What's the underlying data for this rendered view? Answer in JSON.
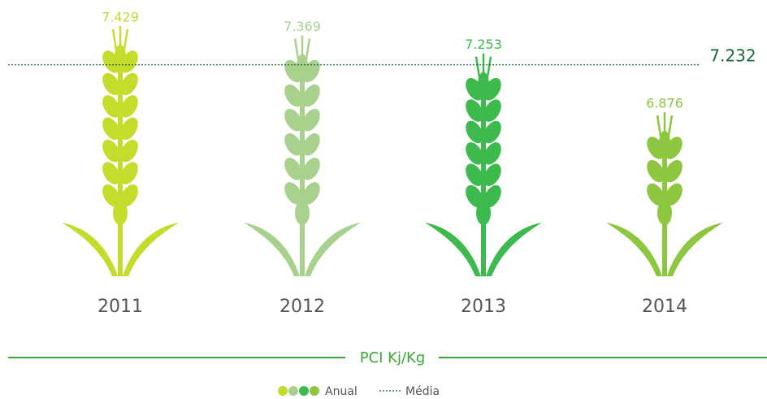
{
  "chart_data": {
    "type": "pictograph",
    "categories": [
      "2011",
      "2012",
      "2013",
      "2014"
    ],
    "series": [
      {
        "name": "Anual",
        "colors": [
          "#c6dc2c",
          "#a9d18e",
          "#3dba4e",
          "#8dc63f"
        ],
        "values": [
          7.429,
          7.369,
          7.253,
          6.876
        ]
      }
    ],
    "mean": {
      "name": "Média",
      "value": 7.232,
      "color": "#1a6b35"
    },
    "x_label": "PCI Kj/Kg"
  }
}
